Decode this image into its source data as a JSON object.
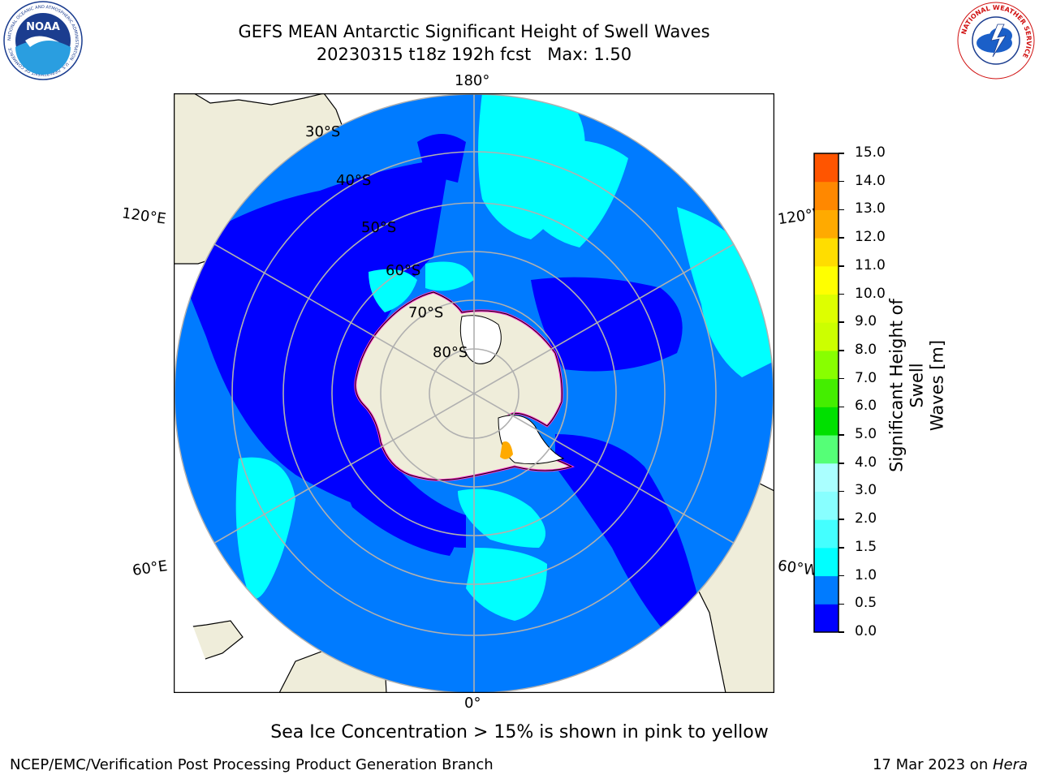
{
  "title": {
    "line1": "GEFS MEAN Antarctic Significant Height of Swell Waves",
    "line2": "20230315 t18z 192h fcst   Max: 1.50"
  },
  "logos": {
    "left": {
      "name": "noaa-logo",
      "text": "NOAA",
      "ring_text": "NATIONAL OCEANIC AND ATMOSPHERIC ADMINISTRATION · U.S. DEPARTMENT OF COMMERCE"
    },
    "right": {
      "name": "nws-logo",
      "ring_text": "NATIONAL WEATHER SERVICE"
    }
  },
  "map": {
    "projection": "south polar stereographic",
    "longitude_labels": {
      "top": "180°",
      "bottom": "0°",
      "upper_left": "120°E",
      "upper_right": "120°W",
      "lower_left": "60°E",
      "lower_right": "60°W"
    },
    "latitude_labels": [
      "30°S",
      "40°S",
      "50°S",
      "60°S",
      "70°S",
      "80°S"
    ],
    "colors": {
      "land": "#efedda",
      "ocean_low": "#0000ff",
      "ocean_mid": "#007bff",
      "ocean_high": "#00ffff",
      "gridline": "#b0b0b0",
      "ice_edge": "#ff33cc"
    }
  },
  "colorbar": {
    "title_line1": "Significant Height of Swell",
    "title_line2": "Waves [m]",
    "ticks": [
      "0.0",
      "0.5",
      "1.0",
      "1.5",
      "2.0",
      "3.0",
      "4.0",
      "5.0",
      "6.0",
      "7.0",
      "8.0",
      "9.0",
      "10.0",
      "11.0",
      "12.0",
      "13.0",
      "14.0",
      "15.0"
    ],
    "colors": [
      "#0000ff",
      "#007bff",
      "#00ffff",
      "#44ffff",
      "#88ffff",
      "#aaffff",
      "#55ff77",
      "#00e000",
      "#44ee00",
      "#88ff00",
      "#ccff00",
      "#ddff00",
      "#ffff00",
      "#ffdd00",
      "#ffaa00",
      "#ff8800",
      "#ff5500",
      "#ff2200",
      "#ff0000"
    ]
  },
  "note": "Sea Ice Concentration > 15% is shown in pink to yellow",
  "credit": {
    "left": "NCEP/EMC/Verification Post Processing Product Generation Branch",
    "right_date": "17 Mar 2023 on ",
    "right_host": "Hera"
  }
}
